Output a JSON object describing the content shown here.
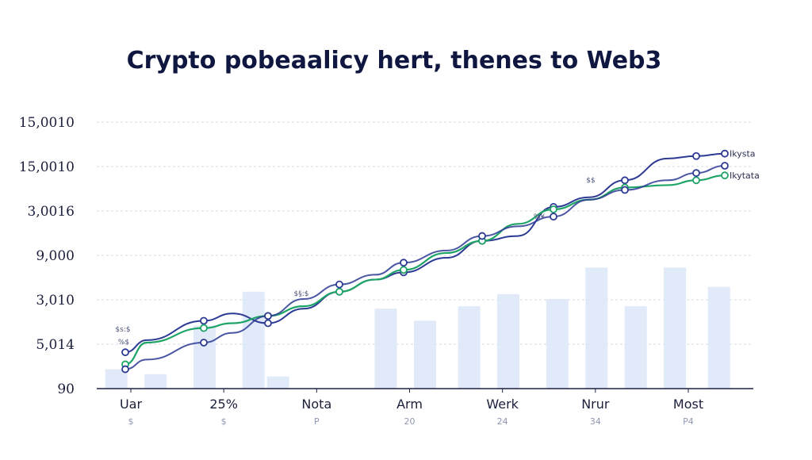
{
  "chart_data": {
    "type": "line",
    "title": "Crypto pobeaalicy hert, thenes to Web3",
    "y_tick_labels": [
      "90",
      "5,014",
      "3,010",
      "9,000",
      "3,0016",
      "15,0010",
      "15,0010"
    ],
    "categories": [
      "Uar",
      "25%",
      "Nota",
      "Arm",
      "Werk",
      "Nrur",
      "Most"
    ],
    "category_sublabels": [
      "$",
      "$",
      "P",
      "20",
      "24",
      "34",
      "P4"
    ],
    "x": [
      1.0,
      1.3,
      2.1,
      2.5,
      3.0,
      3.5,
      4.0,
      4.5,
      4.9,
      5.5,
      6.0,
      6.5,
      7.0,
      7.5,
      8.0,
      8.6,
      9.0,
      9.4
    ],
    "series": [
      {
        "name": "Ikysta",
        "color": "#2d3a94",
        "values": [
          1.5,
          2.0,
          2.8,
          3.1,
          2.7,
          3.3,
          4.0,
          4.5,
          4.8,
          5.4,
          6.1,
          6.3,
          7.5,
          7.9,
          8.6,
          9.5,
          9.6,
          9.7
        ]
      },
      {
        "name": "Ikytata",
        "color": "#1fa467",
        "values": [
          1.0,
          1.9,
          2.5,
          2.7,
          3.0,
          3.4,
          4.0,
          4.5,
          4.9,
          5.6,
          6.1,
          6.8,
          7.4,
          7.8,
          8.3,
          8.4,
          8.6,
          8.8
        ]
      },
      {
        "name": "",
        "color": "#2d3a94",
        "values": [
          0.8,
          1.2,
          1.9,
          2.3,
          3.0,
          3.7,
          4.3,
          4.7,
          5.2,
          5.7,
          6.3,
          6.7,
          7.1,
          7.8,
          8.2,
          8.6,
          8.9,
          9.2
        ]
      }
    ],
    "bars": {
      "x": [
        1.0,
        1.8,
        2.8,
        3.8,
        4.3,
        6.5,
        7.3,
        8.2,
        9.0,
        10.0,
        10.8,
        11.6,
        12.4,
        13.3
      ],
      "values": [
        0.8,
        0.6,
        2.6,
        4.0,
        0.5,
        3.3,
        2.8,
        3.4,
        3.9,
        3.7,
        5.0,
        3.4,
        5.0,
        4.2
      ],
      "color": "#dce6f7"
    },
    "annotations": [
      "$s:$",
      "$§:$",
      "%¥",
      "$$",
      "%$"
    ],
    "ylim": [
      0,
      11
    ],
    "grid": true,
    "legend": "right, at line ends"
  }
}
